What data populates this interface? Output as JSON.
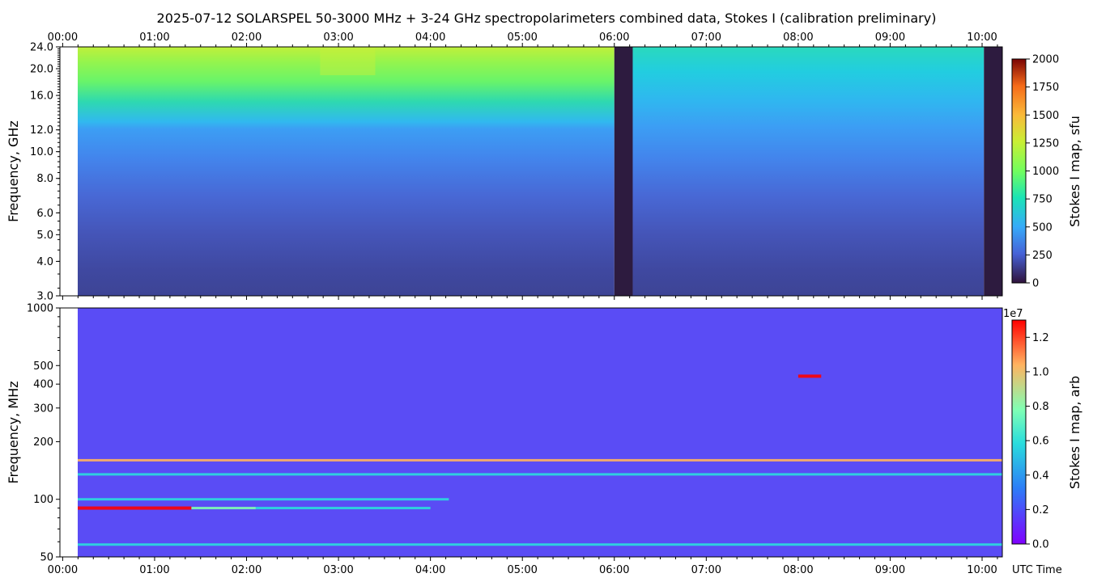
{
  "title": "2025-07-12  SOLARSPEL  50-3000 MHz  +  3-24 GHz  spectropolarimeters combined data,  Stokes I  (calibration preliminary)",
  "time_ticks": [
    "00:00",
    "01:00",
    "02:00",
    "03:00",
    "04:00",
    "05:00",
    "06:00",
    "07:00",
    "08:00",
    "09:00",
    "10:00"
  ],
  "xlabel": "UTC Time",
  "colors": {
    "background": "#ffffff",
    "data_gap": "#2d1b3f"
  },
  "chart_data": [
    {
      "type": "heatmap",
      "name": "upper-panel",
      "ylabel": "Frequency, GHz",
      "y_scale": "log",
      "ylim": [
        3.0,
        24.0
      ],
      "y_ticks": [
        {
          "v": 3,
          "label": "3.0"
        },
        {
          "v": 4,
          "label": "4.0"
        },
        {
          "v": 5,
          "label": "5.0"
        },
        {
          "v": 6,
          "label": "6.0"
        },
        {
          "v": 8,
          "label": "8.0"
        },
        {
          "v": 10,
          "label": "10.0"
        },
        {
          "v": 12,
          "label": "12.0"
        },
        {
          "v": 16,
          "label": "16.0"
        },
        {
          "v": 20,
          "label": "20.0"
        },
        {
          "v": 24,
          "label": "24.0"
        }
      ],
      "x_range_hours": [
        0.0,
        10.22
      ],
      "colorbar": {
        "label": "Stokes I map, sfu",
        "min": 0,
        "max": 2000,
        "ticks": [
          "0",
          "250",
          "500",
          "750",
          "1000",
          "1250",
          "1500",
          "1750",
          "2000"
        ],
        "colormap": "turbo"
      },
      "gaps_hours": [
        [
          6.0,
          6.2
        ],
        [
          10.02,
          10.22
        ]
      ],
      "profile_at_noon_hours": [
        {
          "freq_ghz": 3.0,
          "sfu": 180
        },
        {
          "freq_ghz": 5.0,
          "sfu": 230
        },
        {
          "freq_ghz": 8.0,
          "sfu": 330
        },
        {
          "freq_ghz": 12.0,
          "sfu": 480
        },
        {
          "freq_ghz": 16.0,
          "sfu": 750
        },
        {
          "freq_ghz": 20.0,
          "sfu": 950
        },
        {
          "freq_ghz": 24.0,
          "sfu": 1050
        }
      ]
    },
    {
      "type": "heatmap",
      "name": "lower-panel",
      "ylabel": "Frequency, MHz",
      "y_scale": "log",
      "ylim": [
        50,
        1000
      ],
      "y_ticks": [
        {
          "v": 50,
          "label": "50"
        },
        {
          "v": 100,
          "label": "100"
        },
        {
          "v": 200,
          "label": "200"
        },
        {
          "v": 300,
          "label": "300"
        },
        {
          "v": 400,
          "label": "400"
        },
        {
          "v": 500,
          "label": "500"
        },
        {
          "v": 1000,
          "label": "1000"
        }
      ],
      "x_range_hours": [
        0.0,
        10.22
      ],
      "colorbar": {
        "label": "Stokes I map, arb",
        "min": 0.0,
        "max": 1.3,
        "ticks": [
          "0.0",
          "0.2",
          "0.4",
          "0.6",
          "0.8",
          "1.0",
          "1.2"
        ],
        "multiplier": "1e7",
        "colormap": "rainbow"
      },
      "bands": [
        {
          "freq_mhz": 90,
          "start_h": 0.0,
          "end_h": 1.4,
          "level": 1.2
        },
        {
          "freq_mhz": 90,
          "start_h": 1.4,
          "end_h": 2.1,
          "level": 0.7
        },
        {
          "freq_mhz": 90,
          "start_h": 2.1,
          "end_h": 4.0,
          "level": 0.5
        },
        {
          "freq_mhz": 100,
          "start_h": 0.0,
          "end_h": 4.2,
          "level": 0.5
        },
        {
          "freq_mhz": 58,
          "start_h": 0.0,
          "end_h": 10.22,
          "level": 0.35
        },
        {
          "freq_mhz": 160,
          "start_h": 0.0,
          "end_h": 10.22,
          "level": 0.9
        },
        {
          "freq_mhz": 135,
          "start_h": 0.0,
          "end_h": 10.22,
          "level": 0.4
        },
        {
          "freq_mhz": 440,
          "start_h": 8.0,
          "end_h": 8.25,
          "level": 1.25
        }
      ]
    }
  ]
}
